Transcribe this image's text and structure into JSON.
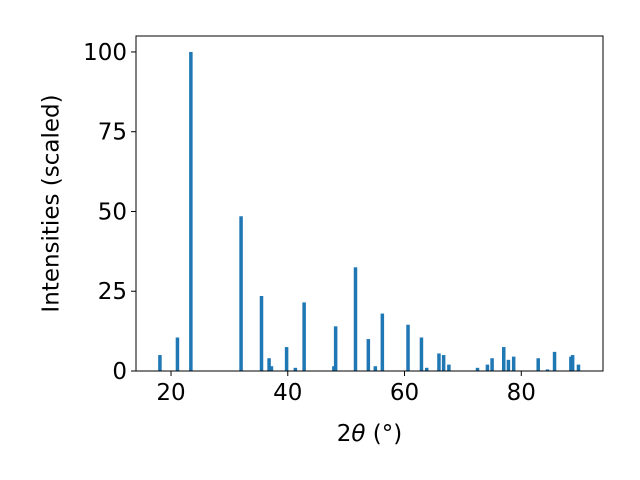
{
  "chart_data": {
    "type": "bar",
    "xlabel": "2θ (°)",
    "ylabel": "Intensities (scaled)",
    "xlim": [
      14,
      94
    ],
    "ylim": [
      0,
      105
    ],
    "x_ticks": [
      20,
      40,
      60,
      80
    ],
    "y_ticks": [
      0,
      25,
      50,
      75,
      100
    ],
    "grid": false,
    "bar_width": 0.6,
    "color": "#1f77b4",
    "series": [
      {
        "x": [
          18.1,
          21.1,
          23.4,
          32.0,
          35.5,
          36.8,
          37.2,
          39.8,
          41.3,
          42.8,
          47.9,
          48.2,
          51.6,
          53.8,
          55.0,
          56.2,
          60.6,
          62.9,
          63.8,
          65.9,
          66.7,
          67.6,
          72.5,
          74.2,
          75.0,
          77.0,
          77.8,
          78.7,
          82.9,
          84.5,
          85.7,
          88.5,
          88.8,
          89.8
        ],
        "values": [
          5.0,
          10.5,
          100.0,
          48.5,
          23.5,
          4.0,
          1.5,
          7.5,
          1.0,
          21.5,
          1.5,
          14.0,
          32.5,
          10.0,
          1.5,
          18.0,
          14.5,
          10.5,
          1.0,
          5.5,
          5.0,
          2.0,
          1.0,
          2.0,
          4.0,
          7.5,
          3.5,
          4.5,
          4.0,
          0.5,
          6.0,
          4.5,
          5.0,
          2.0
        ]
      }
    ]
  }
}
